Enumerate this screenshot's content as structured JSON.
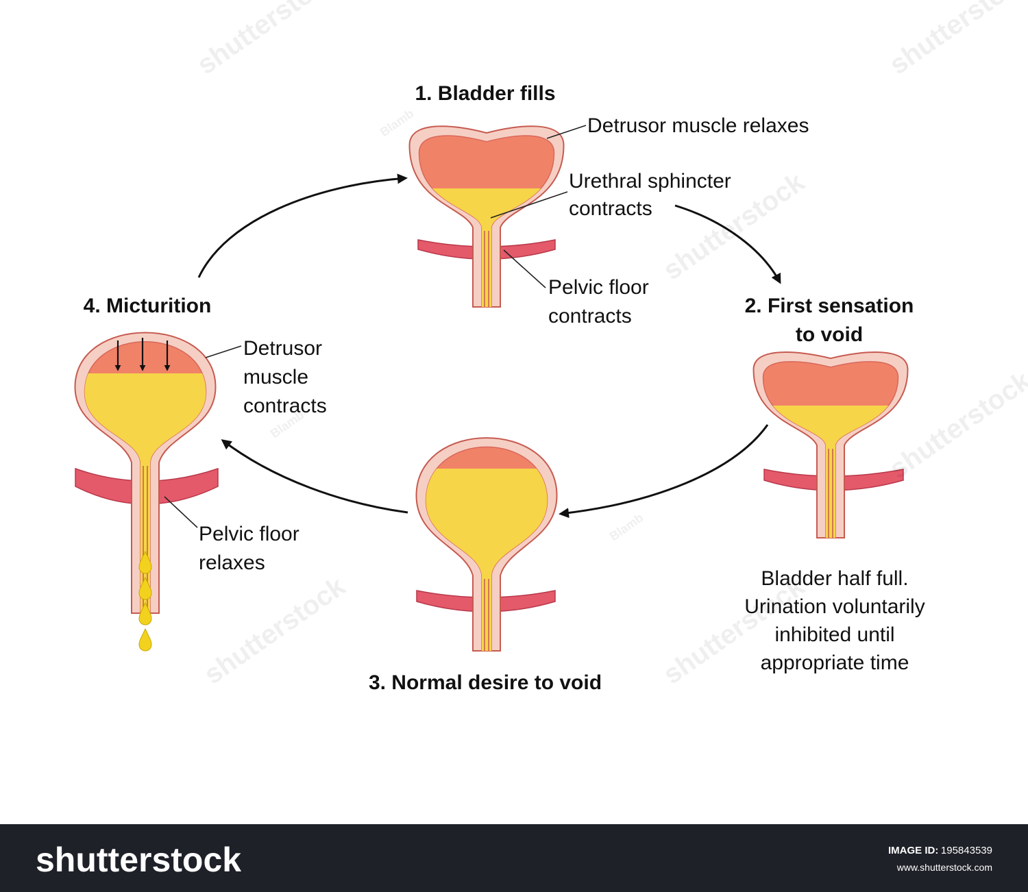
{
  "stages": [
    {
      "title": [
        "1. Bladder fills"
      ],
      "labels": [
        {
          "lines": [
            "Detrusor muscle relaxes"
          ]
        },
        {
          "lines": [
            "Urethral sphincter",
            "contracts"
          ]
        },
        {
          "lines": [
            "Pelvic floor",
            "contracts"
          ]
        }
      ]
    },
    {
      "title": [
        "2. First sensation",
        "to void"
      ],
      "note": [
        "Bladder half full.",
        "Urination voluntarily",
        "inhibited until",
        "appropriate time"
      ]
    },
    {
      "title": [
        "3. Normal desire to void"
      ]
    },
    {
      "title": [
        "4. Micturition"
      ],
      "labels": [
        {
          "lines": [
            "Detrusor",
            "muscle",
            "contracts"
          ]
        },
        {
          "lines": [
            "Pelvic floor",
            "relaxes"
          ]
        }
      ]
    }
  ],
  "watermarks": [
    "shutterstock",
    "Blamb"
  ],
  "footer": {
    "logo": "shutterstock",
    "image_id_label": "IMAGE ID:",
    "image_id": "195843539",
    "url": "www.shutterstock.com"
  }
}
